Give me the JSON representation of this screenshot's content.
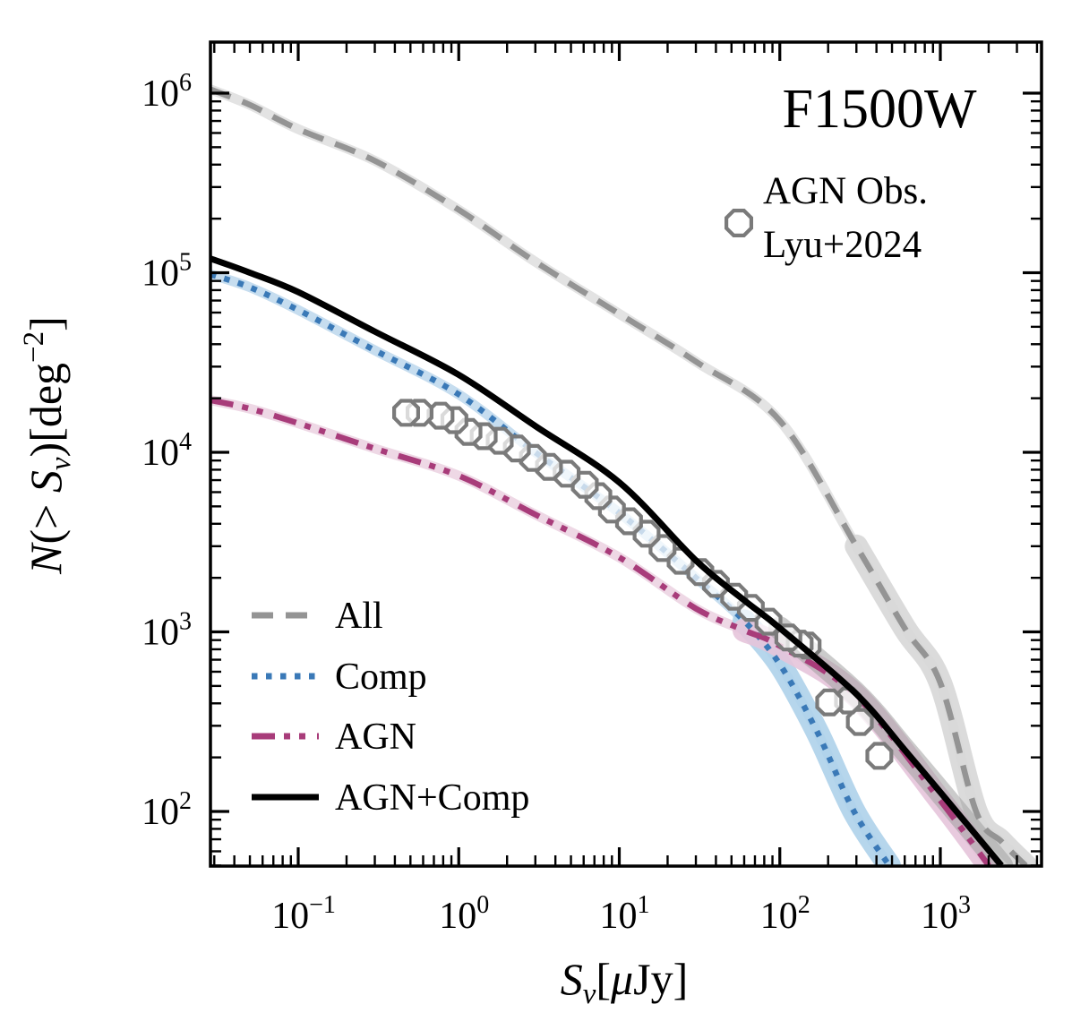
{
  "figure": {
    "title": "F1500W",
    "background": "#ffffff",
    "xlabel_segments": [
      {
        "t": "S",
        "i": true
      },
      {
        "t": "ν",
        "i": true,
        "sub": true
      },
      {
        "t": "[",
        "i": false
      },
      {
        "t": "μ",
        "i": true
      },
      {
        "t": "Jy]",
        "i": false
      }
    ],
    "ylabel_segments": [
      {
        "t": "N",
        "i": true
      },
      {
        "t": "(>",
        "i": false
      },
      {
        "t": " S",
        "i": true
      },
      {
        "t": "ν",
        "i": true,
        "sub": true
      },
      {
        "t": ")[deg",
        "i": false
      },
      {
        "t": "−2",
        "sup": true
      },
      {
        "t": "]",
        "i": false
      }
    ]
  },
  "axes": {
    "x": {
      "scale": "log",
      "min": 0.0284,
      "max": 4275,
      "major_ticks": [
        {
          "v": 0.1,
          "base": "10",
          "exp": "−1"
        },
        {
          "v": 1,
          "base": "10",
          "exp": "0"
        },
        {
          "v": 10,
          "base": "10",
          "exp": "1"
        },
        {
          "v": 100,
          "base": "10",
          "exp": "2"
        },
        {
          "v": 1000,
          "base": "10",
          "exp": "3"
        }
      ]
    },
    "y": {
      "scale": "log",
      "min": 49.6,
      "max": 1950000,
      "major_ticks": [
        {
          "v": 100,
          "base": "10",
          "exp": "2"
        },
        {
          "v": 1000,
          "base": "10",
          "exp": "3"
        },
        {
          "v": 10000,
          "base": "10",
          "exp": "4"
        },
        {
          "v": 100000,
          "base": "10",
          "exp": "5"
        },
        {
          "v": 1000000,
          "base": "10",
          "exp": "6"
        }
      ]
    }
  },
  "line_legend": {
    "position": "lower left",
    "items": [
      {
        "label": "All",
        "series": "All"
      },
      {
        "label": "Comp",
        "series": "Comp"
      },
      {
        "label": "AGN",
        "series": "AGN"
      },
      {
        "label": "AGN+Comp",
        "series": "AGN+Comp"
      }
    ]
  },
  "marker_legend": {
    "lines": [
      "AGN Obs.",
      "Lyu+2024"
    ],
    "marker": "octagon"
  },
  "chart_data": {
    "type": "line",
    "title": "F1500W",
    "xlabel": "S_ν [μJy]",
    "ylabel": "N(>S_ν) [deg^−2]",
    "xscale": "log",
    "yscale": "log",
    "xlim": [
      0.0284,
      4275
    ],
    "ylim": [
      49.6,
      1950000
    ],
    "grid": false,
    "legend_position": "lower left",
    "series": [
      {
        "name": "All",
        "color": "#949494",
        "style": "dashed",
        "band_color": "#e3e3e3",
        "tail_band_color": "#d7d7d7",
        "tail_start": 350,
        "points": [
          [
            0.0284,
            1050000
          ],
          [
            0.05,
            860000
          ],
          [
            0.1,
            630000
          ],
          [
            0.3,
            420000
          ],
          [
            1,
            224000
          ],
          [
            3,
            115000
          ],
          [
            10,
            59000
          ],
          [
            30,
            32000
          ],
          [
            100,
            15000
          ],
          [
            300,
            3000
          ],
          [
            600,
            1050
          ],
          [
            1000,
            520
          ],
          [
            1670,
            100
          ],
          [
            2400,
            68
          ],
          [
            3400,
            50
          ]
        ]
      },
      {
        "name": "Comp",
        "color": "#3a79b7",
        "style": "dotted",
        "band_color": "#c6ddef",
        "tail_band_color": "#aed2ea",
        "tail_start": 90,
        "points": [
          [
            0.0284,
            98000
          ],
          [
            0.05,
            83000
          ],
          [
            0.1,
            62000
          ],
          [
            0.3,
            37000
          ],
          [
            1,
            21000
          ],
          [
            3,
            10000
          ],
          [
            10,
            4600
          ],
          [
            30,
            2000
          ],
          [
            60,
            1150
          ],
          [
            100,
            660
          ],
          [
            170,
            280
          ],
          [
            290,
            100
          ],
          [
            480,
            50
          ]
        ]
      },
      {
        "name": "AGN",
        "color": "#a83c7a",
        "style": "dashdotdot",
        "band_color": "#eed8e5",
        "tail_band_color": "#e6c4da",
        "tail_start": 90,
        "points": [
          [
            0.0284,
            19500
          ],
          [
            0.05,
            17500
          ],
          [
            0.1,
            14500
          ],
          [
            0.3,
            10500
          ],
          [
            1,
            7400
          ],
          [
            3,
            4500
          ],
          [
            10,
            2600
          ],
          [
            30,
            1350
          ],
          [
            60,
            1020
          ],
          [
            100,
            835
          ],
          [
            300,
            440
          ],
          [
            1000,
            115
          ],
          [
            2000,
            50
          ]
        ]
      },
      {
        "name": "AGN+Comp",
        "color": "#000000",
        "style": "solid",
        "band_color": null,
        "tail_band_color": "#a0a0a0",
        "tail_start": 250,
        "points": [
          [
            0.0284,
            120000
          ],
          [
            0.05,
            100000
          ],
          [
            0.1,
            78000
          ],
          [
            0.3,
            47000
          ],
          [
            1,
            27000
          ],
          [
            3,
            14000
          ],
          [
            10,
            6800
          ],
          [
            30,
            2500
          ],
          [
            60,
            1500
          ],
          [
            100,
            1050
          ],
          [
            300,
            450
          ],
          [
            600,
            220
          ],
          [
            1000,
            128
          ],
          [
            2400,
            50
          ]
        ]
      }
    ],
    "observations": {
      "name": "AGN Obs. Lyu+2024",
      "marker": "octagon",
      "edge_color": "#7a7a7a",
      "points": [
        [
          0.47,
          16600
        ],
        [
          0.57,
          16600
        ],
        [
          0.77,
          16000
        ],
        [
          0.94,
          15100
        ],
        [
          1.15,
          13000
        ],
        [
          1.43,
          12300
        ],
        [
          1.8,
          11600
        ],
        [
          2.3,
          10500
        ],
        [
          2.9,
          9300
        ],
        [
          3.65,
          8300
        ],
        [
          4.7,
          7600
        ],
        [
          6.1,
          6600
        ],
        [
          7.4,
          5700
        ],
        [
          9.0,
          4800
        ],
        [
          11.5,
          4130
        ],
        [
          14.8,
          3520
        ],
        [
          18.6,
          2930
        ],
        [
          24.1,
          2490
        ],
        [
          32,
          2150
        ],
        [
          40,
          1850
        ],
        [
          52,
          1570
        ],
        [
          66,
          1360
        ],
        [
          85,
          1140
        ],
        [
          113,
          930
        ],
        [
          133,
          860
        ],
        [
          149,
          840
        ],
        [
          203,
          405
        ],
        [
          266,
          415
        ],
        [
          315,
          315
        ],
        [
          417,
          204
        ]
      ]
    }
  }
}
